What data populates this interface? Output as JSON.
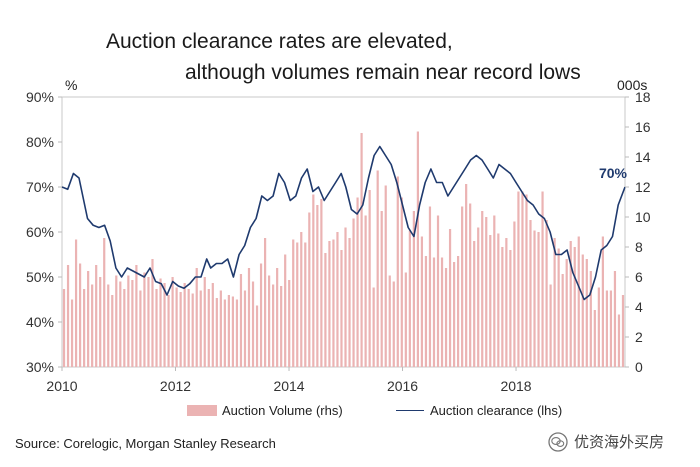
{
  "chart_data": {
    "type": "bar+line",
    "title_line1": "Auction clearance rates are elevated,",
    "title_line2": "although volumes remain near record lows",
    "left_axis_unit": "%",
    "right_axis_unit": "000s",
    "left_axis": {
      "min": 30,
      "max": 90,
      "step": 10,
      "suffix": "%"
    },
    "right_axis": {
      "min": 0,
      "max": 18,
      "step": 2
    },
    "x_ticks": [
      "2010",
      "2012",
      "2014",
      "2016",
      "2018"
    ],
    "x_range": [
      2010.0,
      2019.92
    ],
    "annotation": "70%",
    "colors": {
      "bars": "#ebb3b3",
      "line": "#1f3a6e",
      "annotation": "#1f3a6e"
    },
    "series": [
      {
        "name": "Auction Volume (rhs)",
        "kind": "bar",
        "axis": "right",
        "start": "2010-01",
        "values": [
          5.2,
          6.8,
          4.5,
          8.5,
          6.9,
          5.2,
          6.4,
          5.5,
          6.8,
          6.0,
          8.6,
          5.5,
          4.8,
          6.1,
          5.7,
          5.2,
          6.1,
          5.8,
          6.8,
          5.1,
          6.3,
          6.0,
          7.2,
          5.2,
          5.9,
          5.6,
          4.8,
          6.0,
          5.3,
          5.0,
          5.6,
          5.2,
          4.9,
          6.6,
          5.1,
          6.0,
          5.2,
          5.6,
          4.6,
          5.1,
          4.5,
          4.8,
          4.7,
          4.5,
          6.2,
          5.1,
          6.6,
          5.7,
          4.1,
          6.9,
          8.6,
          6.1,
          5.5,
          6.6,
          5.4,
          7.5,
          5.8,
          8.5,
          8.3,
          9.0,
          8.3,
          10.3,
          11.5,
          10.8,
          11.2,
          7.6,
          8.4,
          8.5,
          9.0,
          7.8,
          9.3,
          8.6,
          9.9,
          11.3,
          15.6,
          10.1,
          11.8,
          5.3,
          13.1,
          10.4,
          12.1,
          6.1,
          5.7,
          12.7,
          11.3,
          6.3,
          9.1,
          10.4,
          15.7,
          8.7,
          7.4,
          10.7,
          7.3,
          10.1,
          7.3,
          6.6,
          9.2,
          7.0,
          7.4,
          10.7,
          12.2,
          10.9,
          8.4,
          9.3,
          10.4,
          10.0,
          8.8,
          10.1,
          8.9,
          8.0,
          8.6,
          7.8,
          9.7,
          11.7,
          11.7,
          11.5,
          9.8,
          9.1,
          9.0,
          11.7,
          9.8,
          5.5,
          8.6,
          7.9,
          6.2,
          7.2,
          8.4,
          8.0,
          8.7,
          7.5,
          7.2,
          6.4,
          3.8,
          5.3,
          8.7,
          5.1,
          5.1,
          6.4,
          3.5,
          4.8
        ]
      },
      {
        "name": "Auction clearance (lhs)",
        "kind": "line",
        "axis": "left",
        "points": [
          [
            2010.0,
            70
          ],
          [
            2010.1,
            69.5
          ],
          [
            2010.2,
            73
          ],
          [
            2010.3,
            72
          ],
          [
            2010.45,
            63
          ],
          [
            2010.55,
            61.5
          ],
          [
            2010.65,
            61
          ],
          [
            2010.75,
            61.5
          ],
          [
            2010.85,
            58
          ],
          [
            2010.95,
            52
          ],
          [
            2011.05,
            50
          ],
          [
            2011.15,
            52
          ],
          [
            2011.3,
            51
          ],
          [
            2011.45,
            50
          ],
          [
            2011.55,
            52
          ],
          [
            2011.65,
            49
          ],
          [
            2011.75,
            48.5
          ],
          [
            2011.85,
            46
          ],
          [
            2011.95,
            49
          ],
          [
            2012.05,
            48
          ],
          [
            2012.15,
            47.5
          ],
          [
            2012.25,
            48.5
          ],
          [
            2012.35,
            50
          ],
          [
            2012.45,
            50
          ],
          [
            2012.55,
            54
          ],
          [
            2012.62,
            52
          ],
          [
            2012.72,
            53
          ],
          [
            2012.82,
            53
          ],
          [
            2012.92,
            54
          ],
          [
            2013.02,
            50
          ],
          [
            2013.12,
            55
          ],
          [
            2013.22,
            57
          ],
          [
            2013.32,
            61
          ],
          [
            2013.42,
            63
          ],
          [
            2013.52,
            68
          ],
          [
            2013.62,
            67
          ],
          [
            2013.72,
            68
          ],
          [
            2013.82,
            73
          ],
          [
            2013.92,
            71
          ],
          [
            2014.02,
            67
          ],
          [
            2014.12,
            68
          ],
          [
            2014.22,
            72
          ],
          [
            2014.32,
            74
          ],
          [
            2014.42,
            69
          ],
          [
            2014.52,
            70
          ],
          [
            2014.62,
            67
          ],
          [
            2014.72,
            69
          ],
          [
            2014.82,
            71
          ],
          [
            2014.92,
            73
          ],
          [
            2015.0,
            70
          ],
          [
            2015.1,
            65
          ],
          [
            2015.2,
            64
          ],
          [
            2015.3,
            66
          ],
          [
            2015.4,
            72
          ],
          [
            2015.5,
            77
          ],
          [
            2015.6,
            79
          ],
          [
            2015.7,
            77
          ],
          [
            2015.8,
            75
          ],
          [
            2015.9,
            71
          ],
          [
            2016.0,
            66
          ],
          [
            2016.1,
            61
          ],
          [
            2016.2,
            59
          ],
          [
            2016.3,
            66
          ],
          [
            2016.4,
            71
          ],
          [
            2016.5,
            74
          ],
          [
            2016.6,
            71
          ],
          [
            2016.7,
            71
          ],
          [
            2016.8,
            68
          ],
          [
            2016.9,
            70
          ],
          [
            2017.0,
            72
          ],
          [
            2017.1,
            74
          ],
          [
            2017.2,
            76
          ],
          [
            2017.3,
            77
          ],
          [
            2017.4,
            76
          ],
          [
            2017.5,
            74
          ],
          [
            2017.6,
            72
          ],
          [
            2017.7,
            75
          ],
          [
            2017.8,
            74
          ],
          [
            2017.9,
            73
          ],
          [
            2018.0,
            71
          ],
          [
            2018.1,
            69
          ],
          [
            2018.2,
            67
          ],
          [
            2018.3,
            66
          ],
          [
            2018.4,
            64
          ],
          [
            2018.5,
            63
          ],
          [
            2018.6,
            60
          ],
          [
            2018.7,
            55
          ],
          [
            2018.8,
            55
          ],
          [
            2018.9,
            56
          ],
          [
            2019.0,
            51
          ],
          [
            2019.1,
            48
          ],
          [
            2019.2,
            45
          ],
          [
            2019.3,
            46
          ],
          [
            2019.4,
            50
          ],
          [
            2019.5,
            56
          ],
          [
            2019.6,
            57
          ],
          [
            2019.7,
            59
          ],
          [
            2019.8,
            66
          ],
          [
            2019.92,
            70
          ]
        ]
      }
    ]
  },
  "source": "Source: Corelogic, Morgan Stanley Research",
  "watermark": {
    "text": "优资海外买房",
    "icon": "wechat-icon"
  }
}
